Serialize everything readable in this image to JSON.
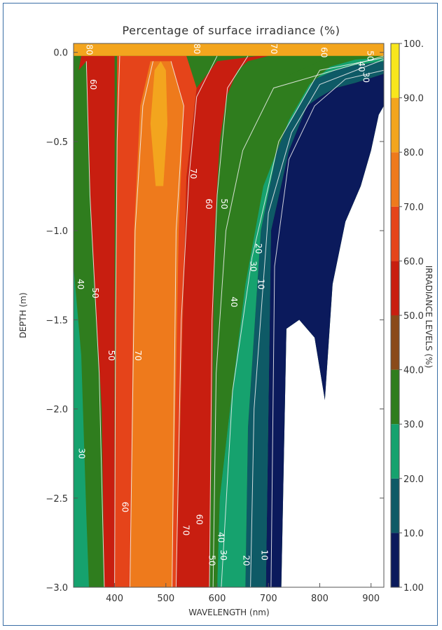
{
  "chart_data": {
    "type": "heatmap",
    "title": "Percentage of surface irradiance (%)",
    "xlabel": "WAVELENGTH (nm)",
    "ylabel": "DEPTH (m)",
    "colorbar_label": "IRRADIANCE LEVELS (%)",
    "xlim": [
      320,
      925
    ],
    "ylim": [
      -3.0,
      0.05
    ],
    "x_ticks": [
      {
        "value": 400,
        "label": "400"
      },
      {
        "value": 500,
        "label": "500"
      },
      {
        "value": 600,
        "label": "600"
      },
      {
        "value": 700,
        "label": "700"
      },
      {
        "value": 800,
        "label": "800"
      },
      {
        "value": 900,
        "label": "900"
      }
    ],
    "y_ticks": [
      {
        "value": 0.0,
        "label": "0.0"
      },
      {
        "value": -0.5,
        "label": "−0.5"
      },
      {
        "value": -1.0,
        "label": "−1.0"
      },
      {
        "value": -1.5,
        "label": "−1.5"
      },
      {
        "value": -2.0,
        "label": "−2.0"
      },
      {
        "value": -2.5,
        "label": "−2.5"
      },
      {
        "value": -3.0,
        "label": "−3.0"
      }
    ],
    "colorbar_ticks": [
      "1.00",
      "10.0",
      "20.0",
      "30.0",
      "40.0",
      "50.0",
      "60.0",
      "70.0",
      "80.0",
      "90.0",
      "100."
    ],
    "levels": [
      {
        "min": 1,
        "max": 10,
        "color": "#0b1a5c"
      },
      {
        "min": 10,
        "max": 20,
        "color": "#0e5a66"
      },
      {
        "min": 20,
        "max": 30,
        "color": "#16a26e"
      },
      {
        "min": 30,
        "max": 40,
        "color": "#2f7d1e"
      },
      {
        "min": 40,
        "max": 50,
        "color": "#8a4a1a"
      },
      {
        "min": 50,
        "max": 60,
        "color": "#c81e10"
      },
      {
        "min": 60,
        "max": 70,
        "color": "#e5441a"
      },
      {
        "min": 70,
        "max": 80,
        "color": "#ee7a1c"
      },
      {
        "min": 80,
        "max": 90,
        "color": "#f3a51e"
      },
      {
        "min": 90,
        "max": 100,
        "color": "#f8e61c"
      }
    ],
    "regions": [
      {
        "name": "below-1",
        "color": "#ffffff",
        "boundary": [
          [
            725,
            -3.0
          ],
          [
            735,
            -1.55
          ],
          [
            760,
            -1.5
          ],
          [
            790,
            -1.6
          ],
          [
            810,
            -1.95
          ],
          [
            825,
            -1.3
          ],
          [
            850,
            -0.95
          ],
          [
            880,
            -0.75
          ],
          [
            900,
            -0.55
          ],
          [
            915,
            -0.35
          ],
          [
            925,
            -0.3
          ],
          [
            925,
            -3.0
          ]
        ]
      },
      {
        "name": "1-10",
        "color": "#0b1a5c",
        "boundary": [
          [
            695,
            -3.0
          ],
          [
            705,
            -1.0
          ],
          [
            740,
            -0.55
          ],
          [
            775,
            -0.3
          ],
          [
            800,
            -0.25
          ],
          [
            830,
            -0.2
          ],
          [
            870,
            -0.17
          ],
          [
            925,
            -0.12
          ],
          [
            925,
            -0.3
          ],
          [
            915,
            -0.35
          ],
          [
            900,
            -0.55
          ],
          [
            880,
            -0.75
          ],
          [
            850,
            -0.95
          ],
          [
            825,
            -1.3
          ],
          [
            810,
            -1.95
          ],
          [
            790,
            -1.6
          ],
          [
            760,
            -1.5
          ],
          [
            735,
            -1.55
          ],
          [
            725,
            -3.0
          ]
        ]
      },
      {
        "name": "10-20",
        "color": "#0e5a66",
        "boundary": [
          [
            655,
            -3.0
          ],
          [
            660,
            -2.1
          ],
          [
            685,
            -1.0
          ],
          [
            720,
            -0.5
          ],
          [
            760,
            -0.3
          ],
          [
            790,
            -0.15
          ],
          [
            830,
            -0.1
          ],
          [
            870,
            -0.07
          ],
          [
            925,
            -0.05
          ],
          [
            925,
            -0.12
          ],
          [
            870,
            -0.17
          ],
          [
            830,
            -0.2
          ],
          [
            800,
            -0.25
          ],
          [
            775,
            -0.3
          ],
          [
            740,
            -0.55
          ],
          [
            705,
            -1.0
          ],
          [
            695,
            -3.0
          ]
        ]
      },
      {
        "name": "20-30",
        "color": "#16a26e",
        "boundary": [
          [
            600,
            -3.0
          ],
          [
            605,
            -2.5
          ],
          [
            625,
            -2.0
          ],
          [
            655,
            -1.3
          ],
          [
            690,
            -0.75
          ],
          [
            740,
            -0.38
          ],
          [
            780,
            -0.18
          ],
          [
            820,
            -0.08
          ],
          [
            870,
            -0.04
          ],
          [
            925,
            -0.03
          ],
          [
            925,
            -0.05
          ],
          [
            870,
            -0.07
          ],
          [
            830,
            -0.1
          ],
          [
            790,
            -0.15
          ],
          [
            760,
            -0.3
          ],
          [
            720,
            -0.5
          ],
          [
            685,
            -1.0
          ],
          [
            660,
            -2.1
          ],
          [
            655,
            -3.0
          ]
        ]
      },
      {
        "name": "30-40-right",
        "color": "#2f7d1e",
        "boundary": [
          [
            585,
            -3.0
          ],
          [
            592,
            -2.0
          ],
          [
            605,
            -1.2
          ],
          [
            630,
            -0.75
          ],
          [
            665,
            -0.45
          ],
          [
            700,
            -0.25
          ],
          [
            745,
            -0.12
          ],
          [
            800,
            -0.05
          ],
          [
            870,
            -0.025
          ],
          [
            925,
            -0.02
          ],
          [
            925,
            -0.03
          ],
          [
            870,
            -0.04
          ],
          [
            820,
            -0.08
          ],
          [
            780,
            -0.18
          ],
          [
            740,
            -0.38
          ],
          [
            690,
            -0.75
          ],
          [
            655,
            -1.3
          ],
          [
            625,
            -2.0
          ],
          [
            605,
            -2.5
          ],
          [
            600,
            -3.0
          ]
        ]
      },
      {
        "name": "30-40-left",
        "color": "#2f7d1e",
        "boundary": [
          [
            320,
            -3.0
          ],
          [
            320,
            -0.25
          ],
          [
            330,
            -0.1
          ],
          [
            345,
            -0.05
          ],
          [
            355,
            -1.0
          ],
          [
            375,
            -2.0
          ],
          [
            380,
            -3.0
          ]
        ]
      },
      {
        "name": "20-30-left",
        "color": "#16a26e",
        "boundary": [
          [
            320,
            -3.0
          ],
          [
            320,
            -1.2
          ],
          [
            335,
            -1.7
          ],
          [
            345,
            -2.6
          ],
          [
            350,
            -3.0
          ]
        ]
      },
      {
        "name": "50-60-left",
        "color": "#c81e10",
        "boundary": [
          [
            345,
            -0.05
          ],
          [
            330,
            -0.1
          ],
          [
            335,
            -0.02
          ],
          [
            400,
            -0.02
          ],
          [
            400,
            -3.0
          ],
          [
            380,
            -3.0
          ],
          [
            375,
            -2.0
          ],
          [
            355,
            -1.0
          ]
        ]
      },
      {
        "name": "50-60-right",
        "color": "#c81e10",
        "boundary": [
          [
            520,
            -3.0
          ],
          [
            540,
            -0.7
          ],
          [
            560,
            -0.2
          ],
          [
            600,
            -0.05
          ],
          [
            680,
            -0.02
          ],
          [
            700,
            -0.02
          ],
          [
            660,
            -0.05
          ],
          [
            640,
            -0.1
          ],
          [
            618,
            -0.25
          ],
          [
            605,
            -0.5
          ],
          [
            595,
            -1.0
          ],
          [
            590,
            -2.0
          ],
          [
            585,
            -3.0
          ]
        ]
      },
      {
        "name": "60-70",
        "color": "#e5441a",
        "boundary": [
          [
            400,
            -3.0
          ],
          [
            405,
            -0.02
          ],
          [
            540,
            -0.02
          ],
          [
            560,
            -0.2
          ],
          [
            540,
            -0.7
          ],
          [
            520,
            -3.0
          ]
        ]
      },
      {
        "name": "70-80",
        "color": "#ee7a1c",
        "boundary": [
          [
            430,
            -3.0
          ],
          [
            438,
            -1.0
          ],
          [
            450,
            -0.3
          ],
          [
            470,
            -0.05
          ],
          [
            510,
            -0.05
          ],
          [
            535,
            -0.3
          ],
          [
            525,
            -1.0
          ],
          [
            512,
            -3.0
          ]
        ]
      },
      {
        "name": "80-90",
        "color": "#f3a51e",
        "boundary": [
          [
            480,
            -0.75
          ],
          [
            470,
            -0.4
          ],
          [
            478,
            -0.1
          ],
          [
            490,
            -0.05
          ],
          [
            500,
            -0.1
          ],
          [
            503,
            -0.4
          ],
          [
            495,
            -0.75
          ]
        ]
      },
      {
        "name": "surface-band",
        "color": "#f3a51e",
        "boundary": [
          [
            320,
            0.05
          ],
          [
            925,
            0.05
          ],
          [
            925,
            -0.02
          ],
          [
            320,
            -0.02
          ]
        ]
      }
    ],
    "contour_labels": [
      {
        "text": "80",
        "x": 345,
        "y": 0.015
      },
      {
        "text": "80",
        "x": 555,
        "y": 0.02
      },
      {
        "text": "70",
        "x": 705,
        "y": 0.02
      },
      {
        "text": "60",
        "x": 803,
        "y": 0.0
      },
      {
        "text": "50",
        "x": 893,
        "y": -0.02
      },
      {
        "text": "40",
        "x": 876,
        "y": -0.08
      },
      {
        "text": "30",
        "x": 885,
        "y": -0.14
      },
      {
        "text": "60",
        "x": 353,
        "y": -0.18
      },
      {
        "text": "70",
        "x": 548,
        "y": -0.68
      },
      {
        "text": "60",
        "x": 578,
        "y": -0.85
      },
      {
        "text": "50",
        "x": 608,
        "y": -0.85
      },
      {
        "text": "40",
        "x": 627,
        "y": -1.4
      },
      {
        "text": "30",
        "x": 665,
        "y": -1.2
      },
      {
        "text": "20",
        "x": 675,
        "y": -1.1
      },
      {
        "text": "10",
        "x": 680,
        "y": -1.3
      },
      {
        "text": "40",
        "x": 328,
        "y": -1.3
      },
      {
        "text": "50",
        "x": 357,
        "y": -1.35
      },
      {
        "text": "50",
        "x": 388,
        "y": -1.7
      },
      {
        "text": "70",
        "x": 440,
        "y": -1.7
      },
      {
        "text": "30",
        "x": 330,
        "y": -2.25
      },
      {
        "text": "60",
        "x": 415,
        "y": -2.55
      },
      {
        "text": "70",
        "x": 534,
        "y": -2.68
      },
      {
        "text": "60",
        "x": 560,
        "y": -2.62
      },
      {
        "text": "50",
        "x": 584,
        "y": -2.85
      },
      {
        "text": "40",
        "x": 602,
        "y": -2.72
      },
      {
        "text": "30",
        "x": 607,
        "y": -2.82
      },
      {
        "text": "20",
        "x": 651,
        "y": -2.85
      },
      {
        "text": "10",
        "x": 687,
        "y": -2.82
      }
    ],
    "contour_lines": [
      [
        [
          705,
          -3.0
        ],
        [
          712,
          -1.2
        ],
        [
          740,
          -0.6
        ],
        [
          790,
          -0.3
        ],
        [
          850,
          -0.15
        ],
        [
          925,
          -0.1
        ]
      ],
      [
        [
          665,
          -3.0
        ],
        [
          672,
          -2.0
        ],
        [
          700,
          -0.9
        ],
        [
          745,
          -0.45
        ],
        [
          800,
          -0.18
        ],
        [
          925,
          -0.04
        ]
      ],
      [
        [
          608,
          -3.0
        ],
        [
          630,
          -1.9
        ],
        [
          668,
          -1.15
        ],
        [
          720,
          -0.5
        ],
        [
          800,
          -0.1
        ],
        [
          925,
          -0.03
        ]
      ],
      [
        [
          592,
          -3.0
        ],
        [
          598,
          -1.8
        ],
        [
          617,
          -1.0
        ],
        [
          650,
          -0.55
        ],
        [
          710,
          -0.2
        ],
        [
          925,
          -0.02
        ]
      ],
      [
        [
          585,
          -3.0
        ],
        [
          590,
          -1.5
        ],
        [
          600,
          -0.8
        ],
        [
          620,
          -0.2
        ],
        [
          660,
          -0.02
        ]
      ],
      [
        [
          520,
          -3.0
        ],
        [
          530,
          -1.5
        ],
        [
          545,
          -0.7
        ],
        [
          560,
          -0.25
        ],
        [
          600,
          -0.02
        ]
      ],
      [
        [
          430,
          -3.0
        ],
        [
          440,
          -1.0
        ],
        [
          455,
          -0.3
        ],
        [
          475,
          -0.05
        ]
      ],
      [
        [
          512,
          -3.0
        ],
        [
          520,
          -1.0
        ],
        [
          535,
          -0.3
        ],
        [
          510,
          -0.05
        ]
      ],
      [
        [
          400,
          -3.0
        ],
        [
          402,
          -1.5
        ],
        [
          405,
          -0.5
        ],
        [
          410,
          -0.02
        ]
      ],
      [
        [
          380,
          -3.0
        ],
        [
          370,
          -1.8
        ],
        [
          352,
          -0.8
        ],
        [
          345,
          -0.05
        ]
      ]
    ],
    "grid": false,
    "colorbar_position": "right"
  }
}
